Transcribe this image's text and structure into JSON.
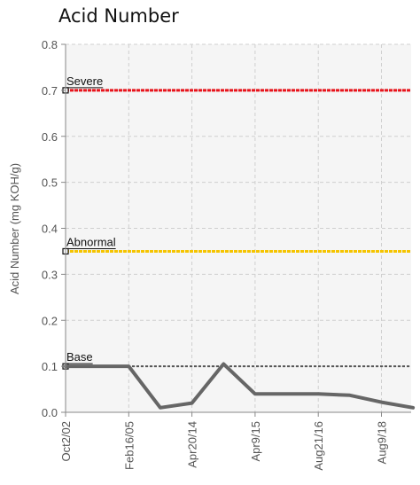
{
  "chart_data": {
    "type": "line",
    "title": "Acid Number",
    "ylabel": "Acid Number (mg KOH/g)",
    "xlabel": "",
    "ylim": [
      0,
      0.8
    ],
    "yticks": [
      "0.0",
      "0.1",
      "0.2",
      "0.3",
      "0.4",
      "0.5",
      "0.6",
      "0.7",
      "0.8"
    ],
    "x_ticks": [
      "Oct2/02",
      "Feb16/05",
      "Apr20/14",
      "Apr9/15",
      "Aug21/16",
      "Aug9/18"
    ],
    "grid": true,
    "thresholds": [
      {
        "name": "Severe",
        "value": 0.7,
        "color": "#e8141c"
      },
      {
        "name": "Abnormal",
        "value": 0.35,
        "color": "#f5c400"
      },
      {
        "name": "Base",
        "value": 0.1,
        "color": "#555555"
      }
    ],
    "series": [
      {
        "color": "#666666",
        "points": [
          {
            "x": 0.0,
            "y": 0.1
          },
          {
            "x": 1.0,
            "y": 0.1
          },
          {
            "x": 1.5,
            "y": 0.01
          },
          {
            "x": 2.0,
            "y": 0.02
          },
          {
            "x": 2.5,
            "y": 0.105
          },
          {
            "x": 3.0,
            "y": 0.04
          },
          {
            "x": 4.0,
            "y": 0.04
          },
          {
            "x": 4.5,
            "y": 0.037
          },
          {
            "x": 5.0,
            "y": 0.022
          },
          {
            "x": 5.5,
            "y": 0.01
          }
        ]
      }
    ]
  }
}
